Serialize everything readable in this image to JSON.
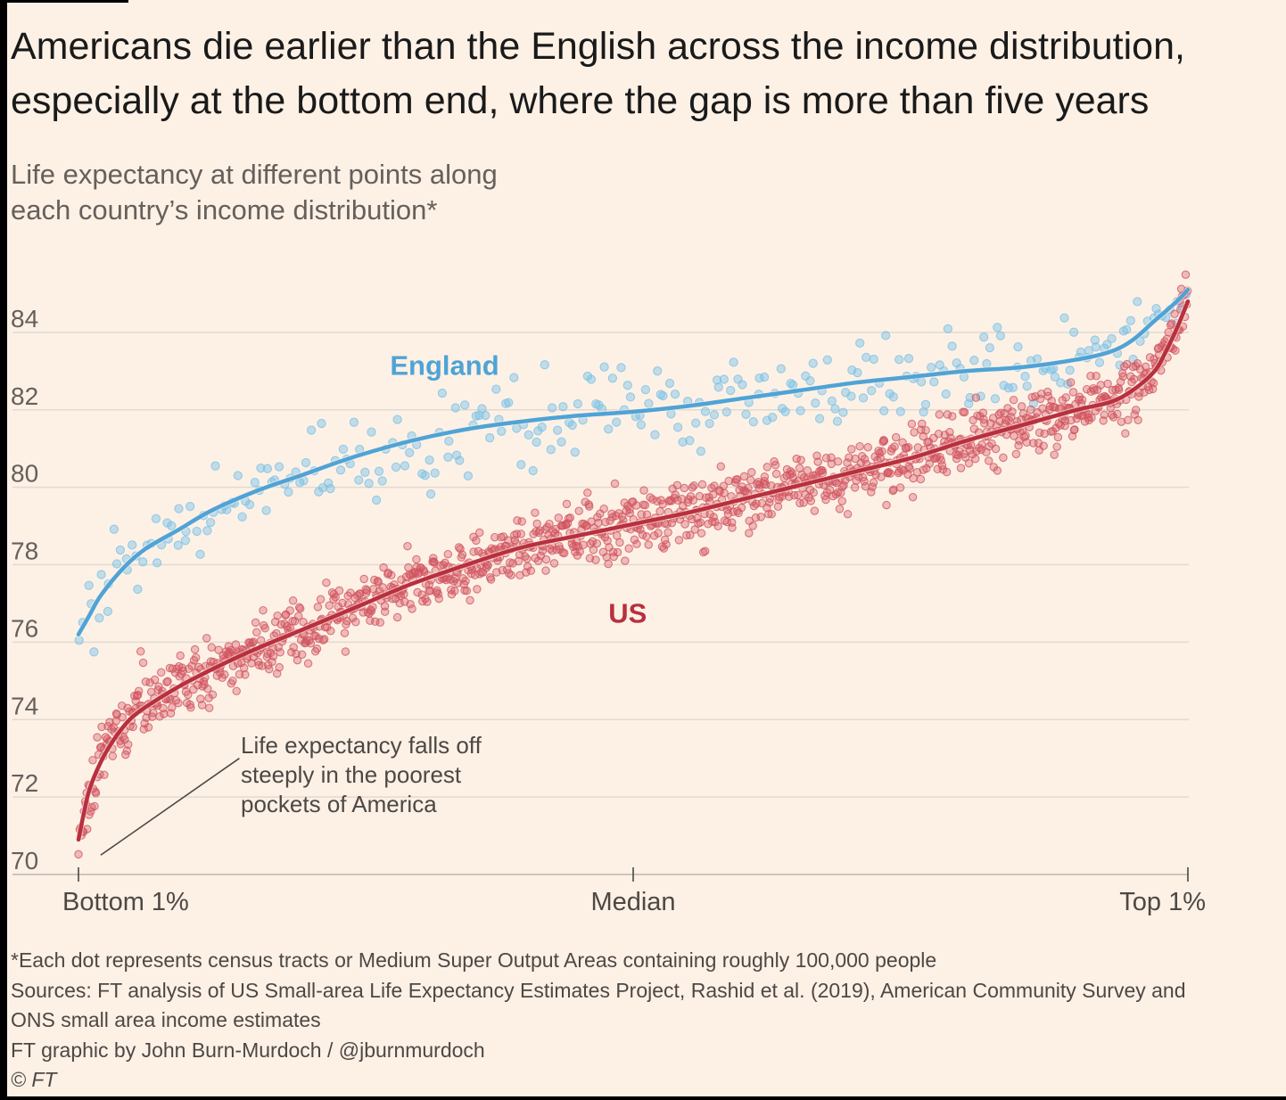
{
  "title": "Americans die earlier than the English across the income distribution, especially at the bottom end, where the gap is more than five years",
  "subtitle_lines": [
    "Life expectancy at different points along",
    "each country’s income distribution*"
  ],
  "footer": {
    "note": "*Each dot represents census tracts or Medium Super Output Areas containing roughly 100,000 people",
    "sources_line1": "Sources: FT analysis of US Small-area Life Expectancy Estimates Project, Rashid et al. (2019), American Community Survey and",
    "sources_line2": "ONS small area income estimates",
    "credit": "FT graphic by John Burn-Murdoch / @jburnmurdoch",
    "copyright": "© FT"
  },
  "chart_data": {
    "type": "scatter",
    "x_axis": {
      "range": [
        0,
        100
      ],
      "ticks": [
        {
          "value": 0,
          "label": "Bottom 1%"
        },
        {
          "value": 50,
          "label": "Median"
        },
        {
          "value": 100,
          "label": "Top 1%"
        }
      ]
    },
    "y_axis": {
      "range": [
        70,
        86
      ],
      "ticks": [
        70,
        72,
        74,
        76,
        78,
        80,
        82,
        84
      ],
      "grid": true
    },
    "series": [
      {
        "name": "England",
        "color": "#4fa3d6",
        "dot_color": "#79c2e6",
        "approx_points": 300,
        "dot_spread": 0.45,
        "trend": [
          [
            0,
            76.2
          ],
          [
            1,
            76.7
          ],
          [
            2,
            77.2
          ],
          [
            4,
            77.9
          ],
          [
            6,
            78.4
          ],
          [
            9,
            78.9
          ],
          [
            12,
            79.4
          ],
          [
            16,
            79.9
          ],
          [
            20,
            80.3
          ],
          [
            25,
            80.8
          ],
          [
            30,
            81.2
          ],
          [
            35,
            81.5
          ],
          [
            40,
            81.7
          ],
          [
            45,
            81.85
          ],
          [
            50,
            81.95
          ],
          [
            55,
            82.1
          ],
          [
            60,
            82.3
          ],
          [
            65,
            82.5
          ],
          [
            70,
            82.7
          ],
          [
            75,
            82.85
          ],
          [
            80,
            83.0
          ],
          [
            85,
            83.1
          ],
          [
            90,
            83.3
          ],
          [
            93,
            83.5
          ],
          [
            95,
            83.8
          ],
          [
            97,
            84.3
          ],
          [
            99,
            84.8
          ],
          [
            100,
            85.1
          ]
        ],
        "label_position": [
          33,
          82.9
        ]
      },
      {
        "name": "US",
        "color": "#b8303f",
        "dot_color": "#d0535f",
        "approx_points": 1300,
        "dot_spread": 0.4,
        "trend": [
          [
            0,
            70.9
          ],
          [
            0.5,
            71.6
          ],
          [
            1,
            72.2
          ],
          [
            2,
            72.9
          ],
          [
            3,
            73.4
          ],
          [
            4,
            73.8
          ],
          [
            5,
            74.1
          ],
          [
            7,
            74.5
          ],
          [
            10,
            75.0
          ],
          [
            15,
            75.7
          ],
          [
            20,
            76.3
          ],
          [
            25,
            76.9
          ],
          [
            30,
            77.5
          ],
          [
            35,
            78.0
          ],
          [
            40,
            78.45
          ],
          [
            45,
            78.75
          ],
          [
            50,
            79.05
          ],
          [
            55,
            79.35
          ],
          [
            60,
            79.7
          ],
          [
            65,
            80.05
          ],
          [
            70,
            80.4
          ],
          [
            75,
            80.75
          ],
          [
            80,
            81.2
          ],
          [
            85,
            81.6
          ],
          [
            90,
            82.0
          ],
          [
            93,
            82.2
          ],
          [
            95,
            82.5
          ],
          [
            97,
            83.0
          ],
          [
            98,
            83.5
          ],
          [
            99,
            84.1
          ],
          [
            100,
            84.8
          ]
        ],
        "label_position": [
          49.5,
          76.5
        ]
      }
    ],
    "annotation": {
      "lines": [
        "Life expectancy falls off",
        "steeply in the poorest",
        "pockets of America"
      ],
      "pointer_from": [
        2,
        70.5
      ],
      "pointer_to": [
        14.5,
        73.0
      ]
    }
  }
}
